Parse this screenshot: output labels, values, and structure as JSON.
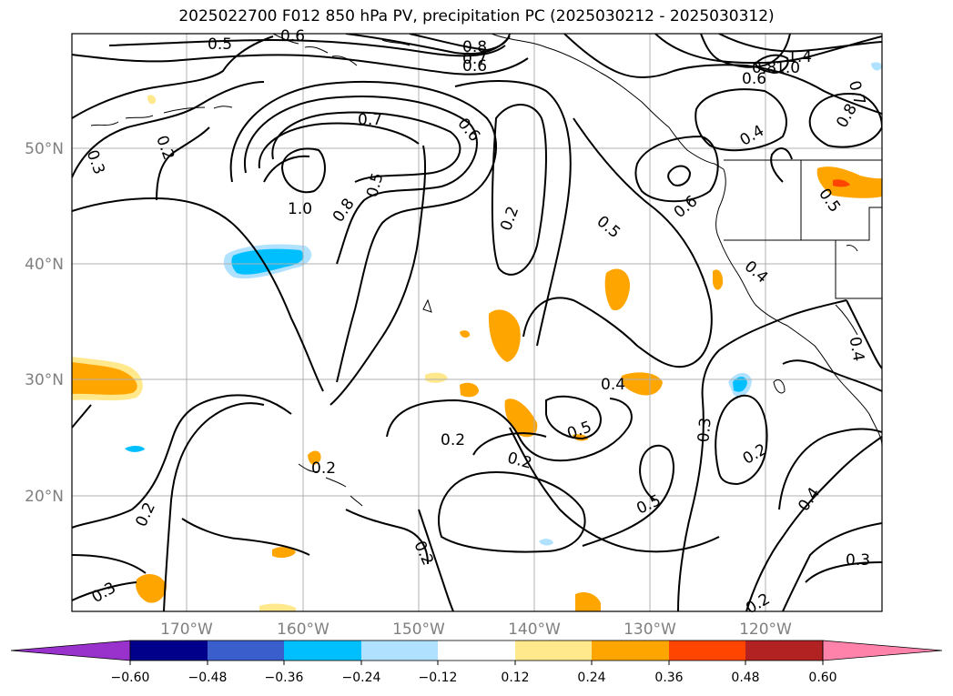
{
  "title": "2025022700 F012 850 hPa PV, precipitation PC (2025030212 - 2025030312)",
  "map": {
    "longitude_labels": [
      "170°W",
      "160°W",
      "150°W",
      "140°W",
      "130°W",
      "120°W"
    ],
    "latitude_labels": [
      "50°N",
      "40°N",
      "30°N",
      "20°N"
    ],
    "grid": true
  },
  "contour_labels": [
    "0.5",
    "0.6",
    "0.8",
    "0.7",
    "0.6",
    "1.4",
    "0.8",
    "1.0",
    "0.6",
    "0.7",
    "0.8",
    "0.3",
    "0.2",
    "0.7",
    "0.6",
    "0.5",
    "0.4",
    "1.0",
    "0.8",
    "0.5",
    "0.2",
    "0.6",
    "0.5",
    "0.4",
    "0.4",
    "0.4",
    "0.5",
    "0.2",
    "0.3",
    "0.2",
    "0.2",
    "0.5",
    "0.4",
    "0.2",
    "0.2",
    "0.3",
    "0.2",
    "0.3",
    "0.2"
  ],
  "colorbar": {
    "levels": [
      "−0.60",
      "−0.48",
      "−0.36",
      "−0.24",
      "−0.12",
      "0.12",
      "0.24",
      "0.36",
      "0.48",
      "0.60"
    ],
    "colors": [
      "#9932cc",
      "#00008b",
      "#3a5fcd",
      "#00bfff",
      "#b0e2ff",
      "#ffffff",
      "#ffe98c",
      "#ffa500",
      "#ff4500",
      "#b22222",
      "#ff82ab"
    ]
  }
}
